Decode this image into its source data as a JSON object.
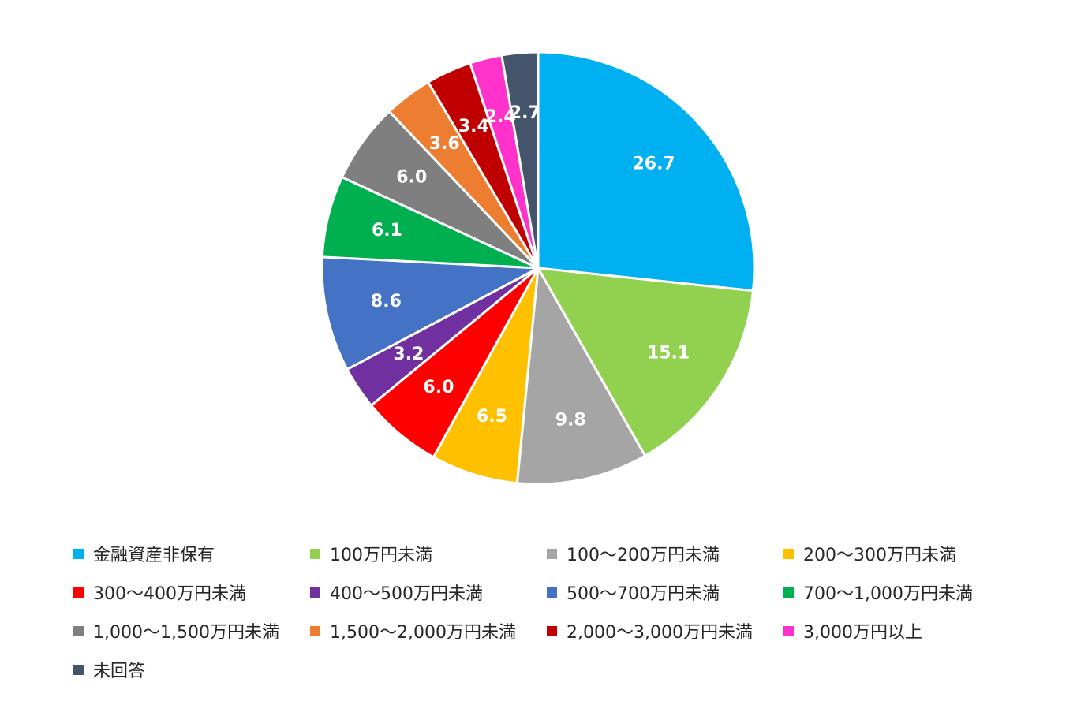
{
  "chart_data": {
    "type": "pie",
    "title": "",
    "legend_position": "bottom",
    "start_angle": "12 o'clock, clockwise",
    "slices": [
      {
        "label": "金融資産非保有",
        "value": 26.7,
        "value_label": "26.7",
        "color": "#00B0F0"
      },
      {
        "label": "100万円未満",
        "value": 15.1,
        "value_label": "15.1",
        "color": "#92D050"
      },
      {
        "label": "100～200万円未満",
        "value": 9.8,
        "value_label": "9.8",
        "color": "#A5A5A5"
      },
      {
        "label": "200～300万円未満",
        "value": 6.5,
        "value_label": "6.5",
        "color": "#FFC000"
      },
      {
        "label": "300～400万円未満",
        "value": 6.0,
        "value_label": "6.0",
        "color": "#FF0000"
      },
      {
        "label": "400～500万円未満",
        "value": 3.2,
        "value_label": "3.2",
        "color": "#7030A0"
      },
      {
        "label": "500～700万円未満",
        "value": 8.6,
        "value_label": "8.6",
        "color": "#4472C4"
      },
      {
        "label": "700～1,000万円未満",
        "value": 6.1,
        "value_label": "6.1",
        "color": "#00B050"
      },
      {
        "label": "1,000～1,500万円未満",
        "value": 6.0,
        "value_label": "6.0",
        "color": "#7F7F7F"
      },
      {
        "label": "1,500～2,000万円未満",
        "value": 3.6,
        "value_label": "3.6",
        "color": "#ED7D31"
      },
      {
        "label": "2,000～3,000万円未満",
        "value": 3.4,
        "value_label": "3.4",
        "color": "#C00000"
      },
      {
        "label": "3,000万円以上",
        "value": 2.4,
        "value_label": "2.4",
        "color": "#FF33CC"
      },
      {
        "label": "未回答",
        "value": 2.7,
        "value_label": "2.7",
        "color": "#44546A"
      }
    ]
  }
}
